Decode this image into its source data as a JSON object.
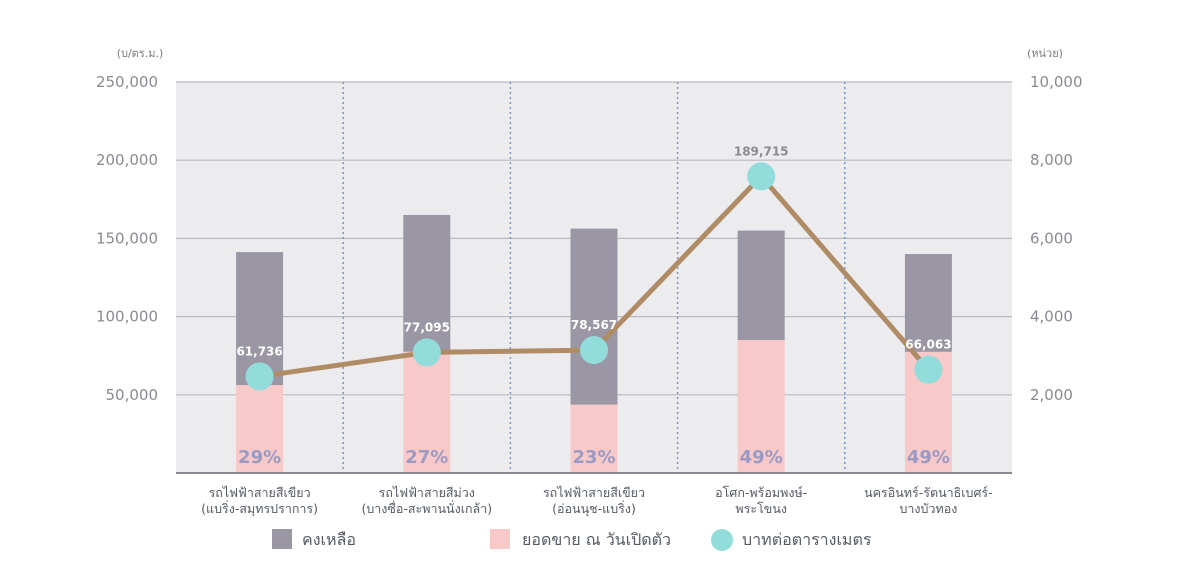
{
  "chart_data": {
    "type": "bar",
    "left_unit": "(บ/ตร.ม.)",
    "right_unit": "(หน่วย)",
    "left_ticks": [
      "50,000",
      "100,000",
      "150,000",
      "200,000",
      "250,000"
    ],
    "right_ticks": [
      "2,000",
      "4,000",
      "6,000",
      "8,000",
      "10,000"
    ],
    "left_ylim": [
      0,
      250000
    ],
    "right_ylim": [
      0,
      10000
    ],
    "categories": [
      [
        "รถไฟฟ้าสายสีเขียว",
        "(แบริ่ง-สมุทรปราการ)"
      ],
      [
        "รถไฟฟ้าสายสีม่วง",
        "(บางซื่อ-สะพานนั่งเกล้า)"
      ],
      [
        "รถไฟฟ้าสายสีเขียว",
        "(อ่อนนุช-แบริ่ง)"
      ],
      [
        "อโศก-พร้อมพงษ์-",
        "พระโขนง"
      ],
      [
        "นครอินทร์-รัตนาธิเบศร์-",
        "บางบัวทอง"
      ]
    ],
    "series": [
      {
        "name": "คงเหลือ",
        "color": "#9a96a3",
        "values": [
          3400,
          3500,
          4500,
          2800,
          2500
        ]
      },
      {
        "name": "ยอดขาย ณ วันเปิดตัว",
        "color": "#f7c9c9",
        "values": [
          2250,
          3100,
          1750,
          3400,
          3100
        ]
      },
      {
        "name": "บาทต่อตารางเมตร",
        "color": "#93dcdc",
        "line_color": "#b08c66",
        "values": [
          61736,
          77095,
          78567,
          189715,
          66063
        ],
        "labels": [
          "61,736",
          "77,095",
          "78,567",
          "189,715",
          "66,063"
        ]
      }
    ],
    "percent_labels": [
      "29%",
      "27%",
      "23%",
      "49%",
      "49%"
    ],
    "grid": true,
    "legend_position": "bottom"
  }
}
